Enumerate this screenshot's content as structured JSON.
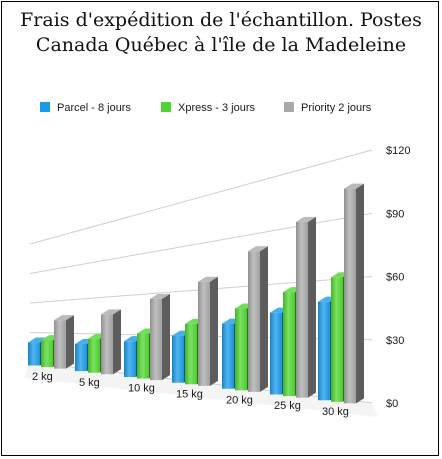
{
  "chart_data": {
    "type": "bar",
    "title": "Frais d'expédition de l'échantillon. Postes\nCanada Québec à l'île de la Madeleine",
    "categories": [
      "2 kg",
      "5 kg",
      "10 kg",
      "15 kg",
      "20 kg",
      "25 kg",
      "30 kg"
    ],
    "series": [
      {
        "name": "Parcel - 8 jours",
        "color": "#1a9be8",
        "values": [
          20,
          21,
          25,
          30,
          38,
          44,
          49
        ]
      },
      {
        "name": "Xpress - 3 jours",
        "color": "#4fd52f",
        "values": [
          23,
          26,
          31,
          38,
          47,
          55,
          61
        ]
      },
      {
        "name": "Priority 2 jours",
        "color": "#a9a9a9",
        "values": [
          42,
          46,
          56,
          65,
          80,
          92,
          104
        ]
      }
    ],
    "y_ticks": [
      "$0",
      "$30",
      "$60",
      "$90",
      "$120"
    ],
    "ylim": [
      0,
      120
    ],
    "xlabel": "",
    "ylabel": "",
    "legend_position": "top",
    "grid": true
  }
}
